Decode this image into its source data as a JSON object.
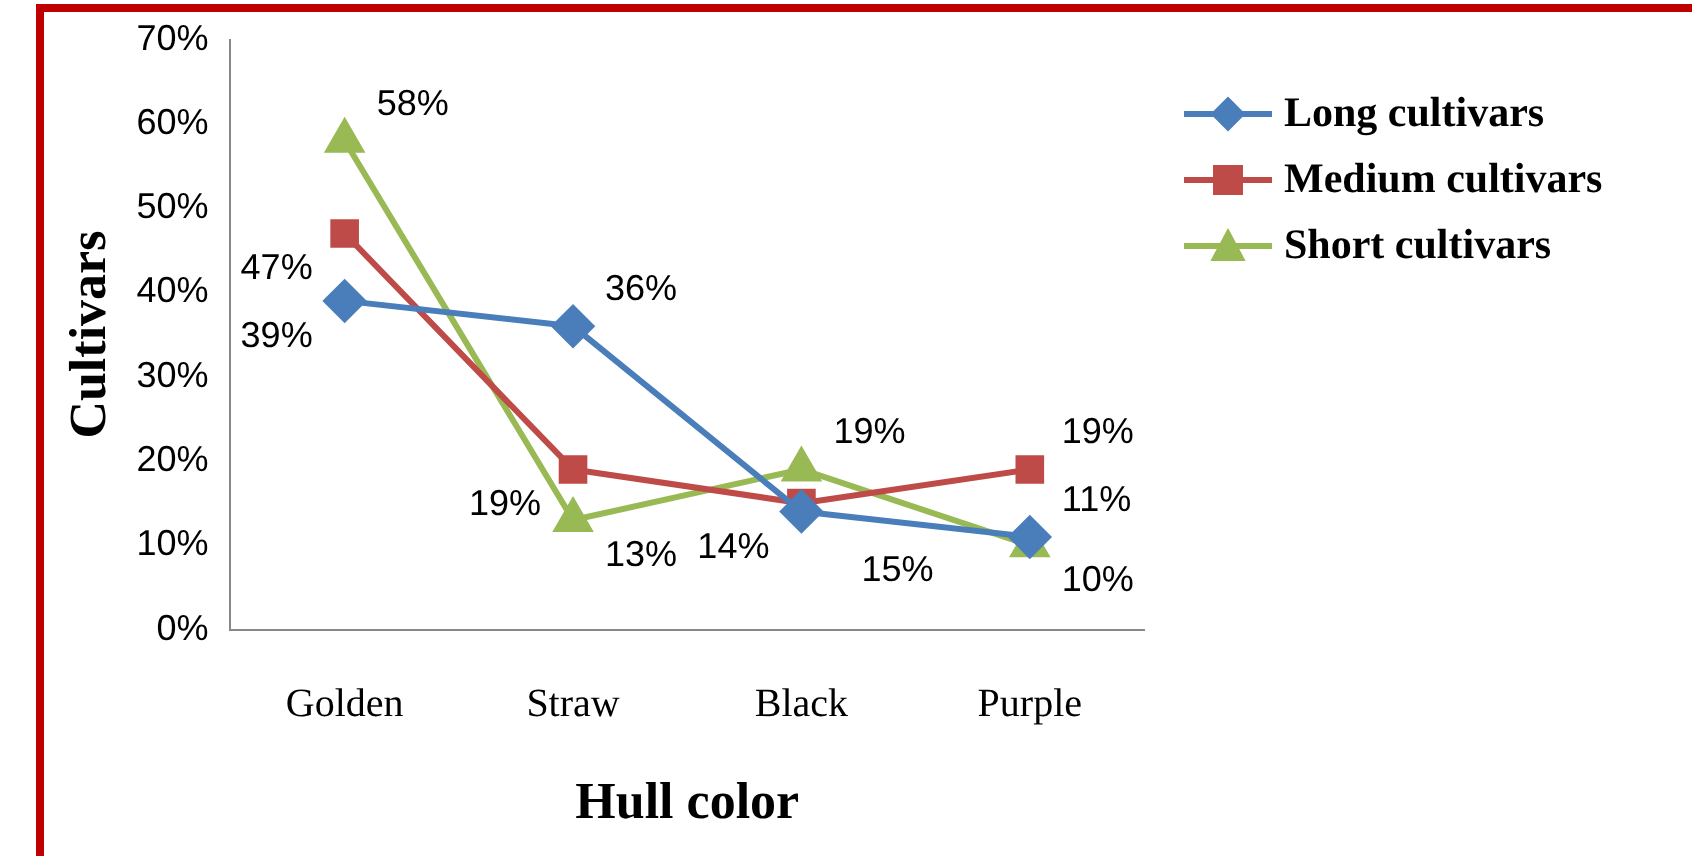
{
  "chart_data": {
    "type": "line",
    "xlabel": "Hull color",
    "ylabel": "Cultivars",
    "categories": [
      "Golden",
      "Straw",
      "Black",
      "Purple"
    ],
    "ylim": [
      0,
      70
    ],
    "yticks": [
      {
        "value": 0,
        "label": "0%"
      },
      {
        "value": 10,
        "label": "10%"
      },
      {
        "value": 20,
        "label": "20%"
      },
      {
        "value": 30,
        "label": "30%"
      },
      {
        "value": 40,
        "label": "40%"
      },
      {
        "value": 50,
        "label": "50%"
      },
      {
        "value": 60,
        "label": "60%"
      },
      {
        "value": 70,
        "label": "70%"
      }
    ],
    "grid": false,
    "legend": "top right",
    "series": [
      {
        "name": "Long cultivars",
        "color": "#4a7ebb",
        "marker": "diamond",
        "values": [
          39,
          36,
          14,
          11
        ],
        "value_labels": [
          "39%",
          "36%",
          "14%",
          "11%"
        ]
      },
      {
        "name": "Medium cultivars",
        "color": "#be4b48",
        "marker": "square",
        "values": [
          47,
          19,
          15,
          19
        ],
        "value_labels": [
          "47%",
          "19%",
          "15%",
          "19%"
        ]
      },
      {
        "name": "Short cultivars",
        "color": "#98b954",
        "marker": "triangle",
        "values": [
          58,
          13,
          19,
          10
        ],
        "value_labels": [
          "58%",
          "13%",
          "19%",
          "10%"
        ]
      }
    ]
  }
}
